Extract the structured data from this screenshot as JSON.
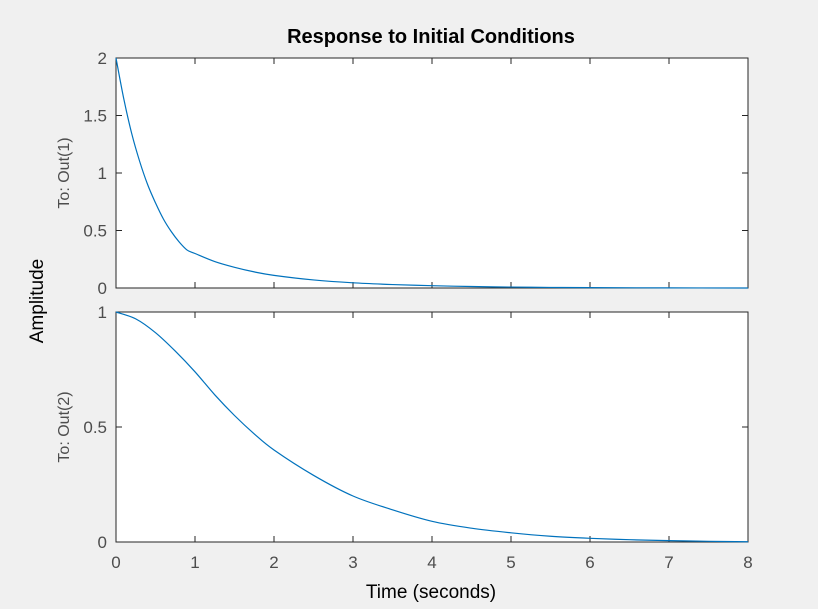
{
  "figure": {
    "background": "#f0f0f0",
    "axes_background": "#ffffff",
    "line_color": "#0072bd",
    "tick_text_color": "#4d4d4d",
    "axes_color": "#262626"
  },
  "chart_data": {
    "type": "line",
    "title": "Response to Initial Conditions",
    "xlabel": "Time (seconds)",
    "ylabel": "Amplitude",
    "xlim": [
      0,
      8
    ],
    "x_ticks": [
      "0",
      "1",
      "2",
      "3",
      "4",
      "5",
      "6",
      "7",
      "8"
    ],
    "grid": false,
    "subplots": [
      {
        "ylabel": "To: Out(1)",
        "ylim": [
          0,
          2
        ],
        "y_ticks": [
          "0",
          "0.5",
          "1",
          "1.5",
          "2"
        ],
        "series": [
          {
            "x": [
              0,
              0.1,
              0.2,
              0.3,
              0.4,
              0.5,
              0.6,
              0.7,
              0.8,
              0.9,
              1.0,
              1.25,
              1.5,
              1.75,
              2.0,
              2.5,
              3.0,
              3.5,
              4.0,
              4.5,
              5.0,
              5.5,
              6.0,
              7.0,
              8.0
            ],
            "values": [
              2.0,
              1.64,
              1.34,
              1.1,
              0.9,
              0.74,
              0.6,
              0.49,
              0.4,
              0.33,
              0.3,
              0.23,
              0.18,
              0.14,
              0.11,
              0.07,
              0.045,
              0.03,
              0.02,
              0.013,
              0.008,
              0.005,
              0.003,
              0.001,
              0.0
            ]
          }
        ]
      },
      {
        "ylabel": "To: Out(2)",
        "ylim": [
          0,
          1
        ],
        "y_ticks": [
          "0",
          "0.5",
          "1"
        ],
        "series": [
          {
            "x": [
              0,
              0.25,
              0.5,
              0.75,
              1.0,
              1.25,
              1.5,
              1.75,
              2.0,
              2.5,
              3.0,
              3.5,
              4.0,
              4.5,
              5.0,
              5.5,
              6.0,
              6.5,
              7.0,
              7.5,
              8.0
            ],
            "values": [
              1.0,
              0.97,
              0.91,
              0.83,
              0.74,
              0.64,
              0.55,
              0.47,
              0.4,
              0.29,
              0.2,
              0.14,
              0.09,
              0.06,
              0.04,
              0.025,
              0.016,
              0.01,
              0.006,
              0.003,
              0.001
            ]
          }
        ]
      }
    ]
  }
}
